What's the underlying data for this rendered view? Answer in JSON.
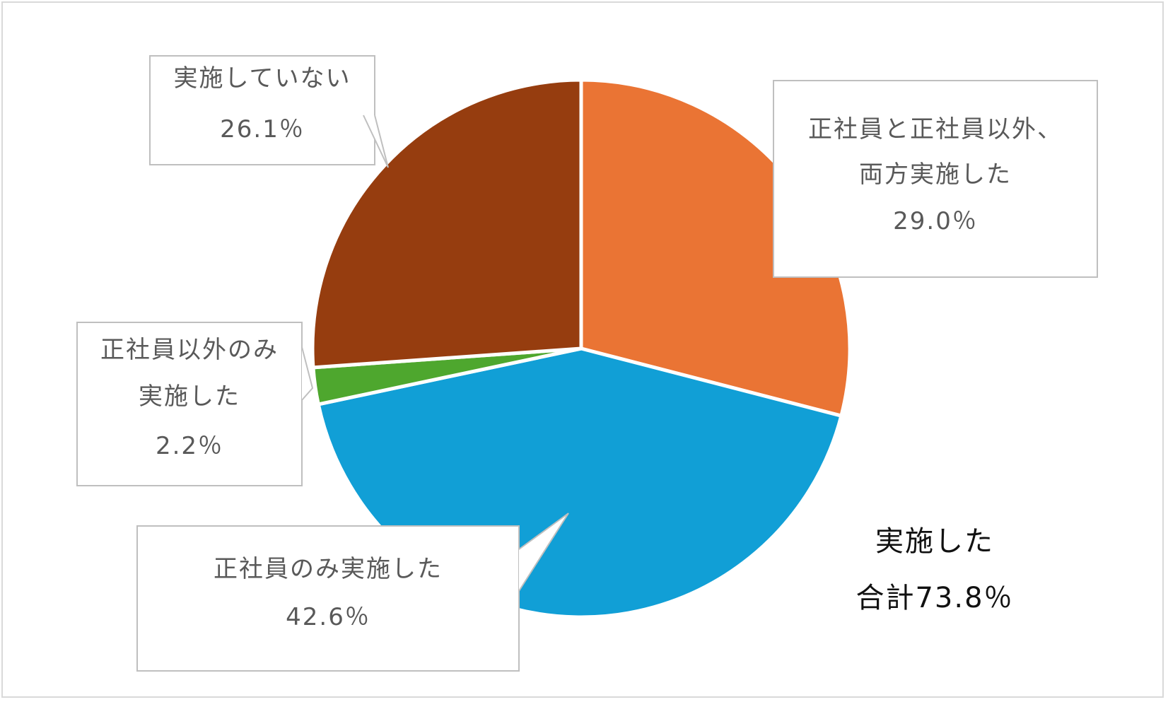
{
  "chart_data": {
    "type": "pie",
    "slices": [
      {
        "label_lines": [
          "正社員と正社員以外、",
          "両方実施した"
        ],
        "value_text": "29.0％",
        "value": 29.0,
        "color": "#ea7434"
      },
      {
        "label_lines": [
          "正社員のみ実施した"
        ],
        "value_text": "42.6％",
        "value": 42.6,
        "color": "#119fd6"
      },
      {
        "label_lines": [
          "正社員以外のみ",
          "実施した"
        ],
        "value_text": "2.2％",
        "value": 2.2,
        "color": "#4ea72e"
      },
      {
        "label_lines": [
          "実施していない"
        ],
        "value_text": "26.1％",
        "value": 26.1,
        "color": "#963d0f"
      }
    ],
    "total_annotation": {
      "line1": "実施した",
      "line2": "合計73.8％"
    }
  }
}
